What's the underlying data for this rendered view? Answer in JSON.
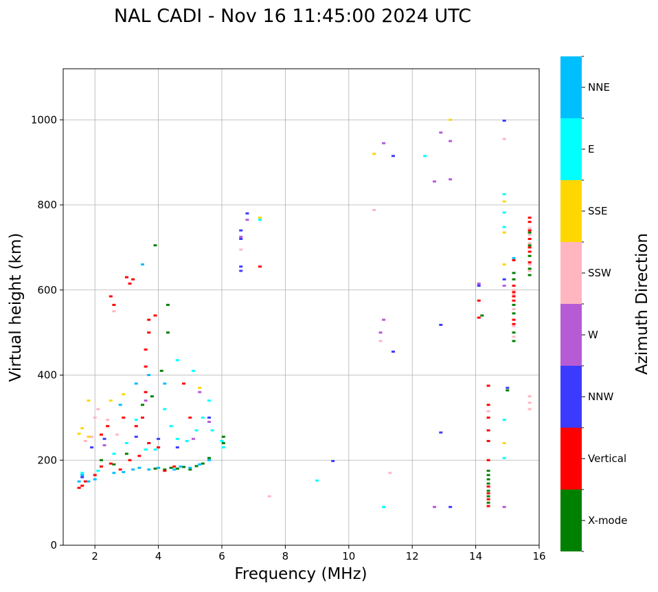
{
  "chart_data": {
    "type": "scatter",
    "title": "NAL CADI - Nov 16 11:45:00 2024 UTC",
    "xlabel": "Frequency (MHz)",
    "ylabel": "Virtual height (km)",
    "xlim": [
      1,
      16
    ],
    "ylim": [
      0,
      1120
    ],
    "xticks": [
      2,
      4,
      6,
      8,
      10,
      12,
      14,
      16
    ],
    "yticks": [
      0,
      200,
      400,
      600,
      800,
      1000
    ],
    "grid": true,
    "colorbar": {
      "label": "Azimuth Direction",
      "categories": [
        {
          "name": "X-mode",
          "color": "#008000"
        },
        {
          "name": "Vertical",
          "color": "#ff0000"
        },
        {
          "name": "NNW",
          "color": "#3b3bff"
        },
        {
          "name": "W",
          "color": "#b55bd6"
        },
        {
          "name": "SSW",
          "color": "#ffb6c1"
        },
        {
          "name": "SSE",
          "color": "#ffd700"
        },
        {
          "name": "E",
          "color": "#00ffff"
        },
        {
          "name": "NNE",
          "color": "#00bfff"
        }
      ]
    },
    "series": [
      {
        "name": "X-mode",
        "points": [
          [
            3.9,
            180
          ],
          [
            4.2,
            178
          ],
          [
            4.4,
            182
          ],
          [
            4.6,
            180
          ],
          [
            4.8,
            184
          ],
          [
            5.0,
            178
          ],
          [
            5.2,
            186
          ],
          [
            5.4,
            192
          ],
          [
            5.6,
            205
          ],
          [
            6.05,
            240
          ],
          [
            6.05,
            255
          ],
          [
            3.5,
            330
          ],
          [
            3.8,
            350
          ],
          [
            4.1,
            410
          ],
          [
            4.3,
            500
          ],
          [
            4.3,
            565
          ],
          [
            3.9,
            705
          ],
          [
            14.2,
            540
          ],
          [
            14.4,
            175
          ],
          [
            14.4,
            165
          ],
          [
            14.4,
            155
          ],
          [
            14.4,
            145
          ],
          [
            14.4,
            128
          ],
          [
            14.4,
            115
          ],
          [
            14.4,
            100
          ],
          [
            15.2,
            640
          ],
          [
            15.2,
            625
          ],
          [
            15.2,
            565
          ],
          [
            15.2,
            545
          ],
          [
            15.2,
            500
          ],
          [
            15.2,
            480
          ],
          [
            15.7,
            735
          ],
          [
            15.7,
            705
          ],
          [
            15.7,
            680
          ],
          [
            15.7,
            650
          ],
          [
            15.7,
            635
          ],
          [
            15.0,
            364
          ],
          [
            2.2,
            200
          ],
          [
            2.6,
            190
          ],
          [
            3.0,
            215
          ]
        ]
      },
      {
        "name": "Vertical",
        "points": [
          [
            1.5,
            135
          ],
          [
            1.6,
            140
          ],
          [
            1.7,
            150
          ],
          [
            2.0,
            165
          ],
          [
            2.2,
            185
          ],
          [
            2.5,
            192
          ],
          [
            2.8,
            178
          ],
          [
            3.1,
            200
          ],
          [
            3.4,
            210
          ],
          [
            3.7,
            240
          ],
          [
            4.0,
            230
          ],
          [
            4.2,
            175
          ],
          [
            4.5,
            185
          ],
          [
            3.5,
            300
          ],
          [
            3.6,
            360
          ],
          [
            3.6,
            420
          ],
          [
            3.6,
            460
          ],
          [
            3.7,
            500
          ],
          [
            3.7,
            530
          ],
          [
            3.9,
            540
          ],
          [
            3.0,
            630
          ],
          [
            3.1,
            615
          ],
          [
            3.2,
            625
          ],
          [
            2.5,
            585
          ],
          [
            2.6,
            565
          ],
          [
            2.9,
            300
          ],
          [
            3.3,
            280
          ],
          [
            4.8,
            380
          ],
          [
            5.0,
            300
          ],
          [
            2.2,
            260
          ],
          [
            2.4,
            280
          ],
          [
            7.2,
            655
          ],
          [
            14.1,
            575
          ],
          [
            14.1,
            535
          ],
          [
            14.4,
            375
          ],
          [
            14.4,
            330
          ],
          [
            14.4,
            300
          ],
          [
            14.4,
            270
          ],
          [
            14.4,
            245
          ],
          [
            14.4,
            200
          ],
          [
            14.4,
            138
          ],
          [
            14.4,
            122
          ],
          [
            14.4,
            108
          ],
          [
            14.4,
            92
          ],
          [
            15.2,
            670
          ],
          [
            15.2,
            610
          ],
          [
            15.2,
            595
          ],
          [
            15.2,
            585
          ],
          [
            15.2,
            575
          ],
          [
            15.2,
            530
          ],
          [
            15.2,
            520
          ],
          [
            15.7,
            770
          ],
          [
            15.7,
            760
          ],
          [
            15.7,
            740
          ],
          [
            15.7,
            720
          ],
          [
            15.7,
            700
          ],
          [
            15.7,
            690
          ],
          [
            15.7,
            665
          ]
        ]
      },
      {
        "name": "NNW",
        "points": [
          [
            1.6,
            160
          ],
          [
            1.9,
            230
          ],
          [
            2.3,
            250
          ],
          [
            3.3,
            255
          ],
          [
            4.0,
            250
          ],
          [
            4.6,
            230
          ],
          [
            5.6,
            300
          ],
          [
            6.6,
            740
          ],
          [
            6.6,
            720
          ],
          [
            6.6,
            655
          ],
          [
            6.6,
            645
          ],
          [
            6.8,
            780
          ],
          [
            9.5,
            198
          ],
          [
            11.4,
            455
          ],
          [
            11.4,
            915
          ],
          [
            12.9,
            518
          ],
          [
            12.9,
            265
          ],
          [
            13.2,
            90
          ],
          [
            14.1,
            610
          ],
          [
            14.9,
            998
          ],
          [
            14.9,
            625
          ],
          [
            15.0,
            370
          ]
        ]
      },
      {
        "name": "W",
        "points": [
          [
            2.3,
            235
          ],
          [
            3.6,
            340
          ],
          [
            5.1,
            250
          ],
          [
            5.3,
            360
          ],
          [
            5.6,
            290
          ],
          [
            6.6,
            725
          ],
          [
            6.8,
            765
          ],
          [
            11.0,
            500
          ],
          [
            11.1,
            530
          ],
          [
            11.1,
            945
          ],
          [
            12.7,
            855
          ],
          [
            12.9,
            970
          ],
          [
            13.2,
            950
          ],
          [
            13.2,
            860
          ],
          [
            12.7,
            90
          ],
          [
            14.1,
            615
          ],
          [
            14.9,
            610
          ],
          [
            14.9,
            90
          ]
        ]
      },
      {
        "name": "SSW",
        "points": [
          [
            1.7,
            245
          ],
          [
            1.9,
            255
          ],
          [
            2.0,
            300
          ],
          [
            2.1,
            320
          ],
          [
            2.4,
            295
          ],
          [
            2.7,
            260
          ],
          [
            2.6,
            550
          ],
          [
            6.6,
            695
          ],
          [
            7.5,
            115
          ],
          [
            10.8,
            788
          ],
          [
            11.0,
            480
          ],
          [
            11.3,
            170
          ],
          [
            14.9,
            955
          ],
          [
            15.2,
            600
          ],
          [
            15.2,
            590
          ],
          [
            15.2,
            555
          ],
          [
            15.2,
            515
          ],
          [
            15.2,
            490
          ],
          [
            15.7,
            350
          ],
          [
            15.7,
            335
          ],
          [
            15.7,
            320
          ],
          [
            15.7,
            745
          ],
          [
            15.7,
            730
          ],
          [
            15.7,
            710
          ],
          [
            15.7,
            660
          ],
          [
            15.7,
            645
          ],
          [
            14.4,
            315
          ]
        ]
      },
      {
        "name": "SSE",
        "points": [
          [
            1.5,
            262
          ],
          [
            1.6,
            275
          ],
          [
            1.8,
            255
          ],
          [
            1.8,
            340
          ],
          [
            2.5,
            340
          ],
          [
            2.9,
            355
          ],
          [
            5.3,
            370
          ],
          [
            7.2,
            770
          ],
          [
            10.8,
            920
          ],
          [
            13.2,
            1000
          ],
          [
            14.9,
            735
          ],
          [
            14.9,
            660
          ],
          [
            14.9,
            808
          ],
          [
            14.9,
            240
          ]
        ]
      },
      {
        "name": "E",
        "points": [
          [
            1.6,
            170
          ],
          [
            2.1,
            175
          ],
          [
            2.6,
            215
          ],
          [
            3.0,
            240
          ],
          [
            3.3,
            295
          ],
          [
            3.6,
            225
          ],
          [
            3.9,
            225
          ],
          [
            4.2,
            320
          ],
          [
            4.4,
            280
          ],
          [
            4.6,
            250
          ],
          [
            4.9,
            245
          ],
          [
            5.2,
            270
          ],
          [
            5.4,
            300
          ],
          [
            5.6,
            340
          ],
          [
            4.6,
            435
          ],
          [
            5.1,
            410
          ],
          [
            5.7,
            270
          ],
          [
            6.0,
            245
          ],
          [
            6.05,
            230
          ],
          [
            7.2,
            765
          ],
          [
            9.0,
            152
          ],
          [
            11.1,
            90
          ],
          [
            12.4,
            915
          ],
          [
            14.9,
            825
          ],
          [
            14.9,
            782
          ],
          [
            14.9,
            748
          ],
          [
            14.9,
            295
          ],
          [
            14.9,
            205
          ]
        ]
      },
      {
        "name": "NNE",
        "points": [
          [
            1.5,
            150
          ],
          [
            1.6,
            165
          ],
          [
            1.8,
            150
          ],
          [
            2.0,
            155
          ],
          [
            2.6,
            170
          ],
          [
            2.9,
            172
          ],
          [
            3.2,
            178
          ],
          [
            3.4,
            182
          ],
          [
            3.7,
            178
          ],
          [
            4.0,
            182
          ],
          [
            4.5,
            178
          ],
          [
            4.7,
            185
          ],
          [
            5.0,
            182
          ],
          [
            5.3,
            190
          ],
          [
            5.6,
            200
          ],
          [
            3.3,
            380
          ],
          [
            3.7,
            400
          ],
          [
            4.2,
            380
          ],
          [
            2.8,
            330
          ],
          [
            3.5,
            660
          ],
          [
            15.2,
            675
          ]
        ]
      }
    ]
  }
}
